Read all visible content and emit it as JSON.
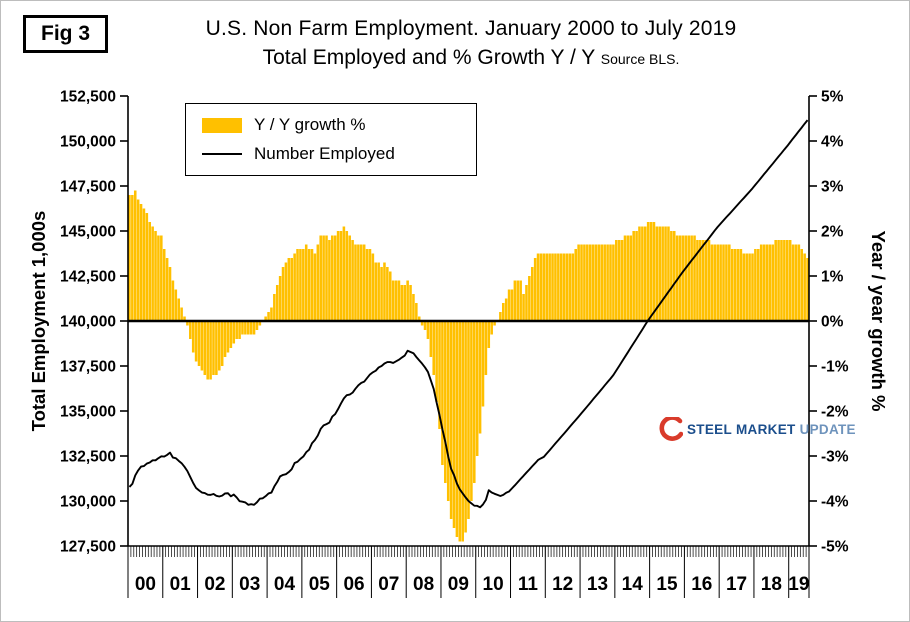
{
  "figure_label": "Fig 3",
  "title": {
    "line1": "U.S. Non Farm Employment. January 2000 to July 2019",
    "line2": "Total Employed and % Growth Y / Y",
    "source": "Source BLS."
  },
  "legend": {
    "bar_label": "Y / Y growth %",
    "line_label": "Number Employed"
  },
  "watermark": {
    "word1": "STEEL",
    "word2": "MARKET",
    "word3": "UPDATE"
  },
  "colors": {
    "bar": "#FFC000",
    "line": "#000000",
    "axis": "#000000",
    "watermark_red": "#D93B2B",
    "watermark_blue": "#1B4E8C",
    "watermark_light_blue": "#6E93BC"
  },
  "chart_data": {
    "type": "combo",
    "x_unit": "month",
    "x_start": "2000-01",
    "x_end": "2019-07",
    "x_year_labels": [
      "00",
      "01",
      "02",
      "03",
      "04",
      "05",
      "06",
      "07",
      "08",
      "09",
      "10",
      "11",
      "12",
      "13",
      "14",
      "15",
      "16",
      "17",
      "18",
      "19"
    ],
    "left_axis": {
      "title": "Total Employment 1,000s",
      "min": 127500,
      "max": 152500,
      "step": 2500
    },
    "right_axis": {
      "title": "Year / year growth %",
      "min": -5,
      "max": 5,
      "step": 1,
      "unit": "%"
    },
    "zero_baseline_left_value": 140000,
    "series": [
      {
        "name": "Y / Y growth %",
        "type": "bar",
        "axis": "right",
        "color": "#FFC000",
        "values": [
          2.8,
          2.8,
          2.9,
          2.7,
          2.6,
          2.5,
          2.4,
          2.2,
          2.1,
          2.0,
          1.9,
          1.9,
          1.6,
          1.4,
          1.2,
          0.9,
          0.7,
          0.5,
          0.3,
          0.1,
          -0.1,
          -0.4,
          -0.7,
          -0.9,
          -1.0,
          -1.1,
          -1.2,
          -1.3,
          -1.3,
          -1.2,
          -1.2,
          -1.1,
          -1.0,
          -0.8,
          -0.7,
          -0.6,
          -0.5,
          -0.4,
          -0.4,
          -0.3,
          -0.3,
          -0.3,
          -0.3,
          -0.3,
          -0.2,
          -0.1,
          0.0,
          0.1,
          0.2,
          0.3,
          0.6,
          0.8,
          1.0,
          1.2,
          1.3,
          1.4,
          1.4,
          1.5,
          1.6,
          1.6,
          1.6,
          1.7,
          1.6,
          1.6,
          1.5,
          1.7,
          1.9,
          1.9,
          1.9,
          1.8,
          1.9,
          1.9,
          2.0,
          2.0,
          2.1,
          2.0,
          1.9,
          1.8,
          1.7,
          1.7,
          1.7,
          1.7,
          1.6,
          1.6,
          1.5,
          1.3,
          1.3,
          1.2,
          1.3,
          1.2,
          1.1,
          0.9,
          0.9,
          0.9,
          0.8,
          0.8,
          0.9,
          0.8,
          0.6,
          0.4,
          0.1,
          -0.1,
          -0.2,
          -0.4,
          -0.8,
          -1.2,
          -1.8,
          -2.4,
          -3.2,
          -3.6,
          -4.0,
          -4.4,
          -4.6,
          -4.8,
          -4.9,
          -4.9,
          -4.7,
          -4.4,
          -4.0,
          -3.6,
          -3.0,
          -2.5,
          -1.9,
          -1.2,
          -0.6,
          -0.3,
          -0.1,
          0.0,
          0.2,
          0.4,
          0.5,
          0.7,
          0.7,
          0.9,
          0.9,
          0.9,
          0.6,
          0.8,
          1.0,
          1.2,
          1.4,
          1.5,
          1.5,
          1.5,
          1.5,
          1.5,
          1.5,
          1.5,
          1.5,
          1.5,
          1.5,
          1.5,
          1.5,
          1.5,
          1.6,
          1.7,
          1.7,
          1.7,
          1.7,
          1.7,
          1.7,
          1.7,
          1.7,
          1.7,
          1.7,
          1.7,
          1.7,
          1.7,
          1.8,
          1.8,
          1.8,
          1.9,
          1.9,
          1.9,
          2.0,
          2.0,
          2.1,
          2.1,
          2.1,
          2.2,
          2.2,
          2.2,
          2.1,
          2.1,
          2.1,
          2.1,
          2.1,
          2.0,
          2.0,
          1.9,
          1.9,
          1.9,
          1.9,
          1.9,
          1.9,
          1.9,
          1.8,
          1.8,
          1.8,
          1.8,
          1.8,
          1.7,
          1.7,
          1.7,
          1.7,
          1.7,
          1.7,
          1.7,
          1.6,
          1.6,
          1.6,
          1.6,
          1.5,
          1.5,
          1.5,
          1.5,
          1.6,
          1.6,
          1.7,
          1.7,
          1.7,
          1.7,
          1.7,
          1.8,
          1.8,
          1.8,
          1.8,
          1.8,
          1.8,
          1.7,
          1.7,
          1.7,
          1.6,
          1.5,
          1.4
        ]
      },
      {
        "name": "Number Employed",
        "type": "line",
        "axis": "left",
        "color": "#000000",
        "values": [
          130780,
          130950,
          131420,
          131700,
          131910,
          131940,
          132080,
          132140,
          132260,
          132260,
          132380,
          132480,
          132470,
          132560,
          132690,
          132410,
          132380,
          132230,
          132100,
          131900,
          131660,
          131330,
          131000,
          130720,
          130590,
          130470,
          130440,
          130350,
          130340,
          130390,
          130290,
          130250,
          130300,
          130420,
          130430,
          130260,
          130360,
          130200,
          129990,
          129960,
          129920,
          129790,
          129820,
          129790,
          129930,
          130130,
          130150,
          130270,
          130420,
          130470,
          130810,
          131060,
          131370,
          131450,
          131490,
          131610,
          131770,
          132110,
          132180,
          132340,
          132470,
          132710,
          132850,
          133210,
          133390,
          133640,
          134010,
          134200,
          134270,
          134360,
          134690,
          134830,
          135110,
          135420,
          135700,
          135880,
          135910,
          136020,
          136240,
          136430,
          136560,
          136630,
          136830,
          137030,
          137150,
          137240,
          137420,
          137500,
          137640,
          137720,
          137720,
          137670,
          137760,
          137850,
          137970,
          138080,
          138350,
          138280,
          138210,
          138000,
          137810,
          137630,
          137420,
          137170,
          136700,
          136220,
          135470,
          134770,
          133980,
          133280,
          132480,
          131790,
          131440,
          130970,
          130640,
          130420,
          130200,
          130000,
          129870,
          129740,
          129730,
          129650,
          129810,
          130060,
          130600,
          130470,
          130400,
          130340,
          130280,
          130340,
          130460,
          130530,
          130700,
          130870,
          131050,
          131230,
          131400,
          131580,
          131750,
          131930,
          132100,
          132280,
          132370,
          132450,
          132640,
          132820,
          133010,
          133200,
          133380,
          133570,
          133750,
          133940,
          134130,
          134320,
          134500,
          134690,
          134880,
          135070,
          135260,
          135450,
          135650,
          135840,
          136030,
          136220,
          136420,
          136610,
          136800,
          137000,
          137250,
          137500,
          137760,
          138010,
          138260,
          138520,
          138770,
          139020,
          139280,
          139530,
          139790,
          140040,
          140270,
          140490,
          140720,
          140940,
          141170,
          141390,
          141620,
          141840,
          142070,
          142290,
          142520,
          142740,
          142950,
          143160,
          143370,
          143570,
          143780,
          143990,
          144200,
          144400,
          144610,
          144820,
          145030,
          145230,
          145410,
          145590,
          145770,
          145940,
          146120,
          146300,
          146480,
          146660,
          146830,
          147010,
          147190,
          147370,
          147570,
          147760,
          147960,
          148160,
          148350,
          148550,
          148740,
          148940,
          149140,
          149330,
          149530,
          149720,
          149930,
          150140,
          150340,
          150550,
          150750,
          150960,
          151160
        ]
      }
    ]
  }
}
